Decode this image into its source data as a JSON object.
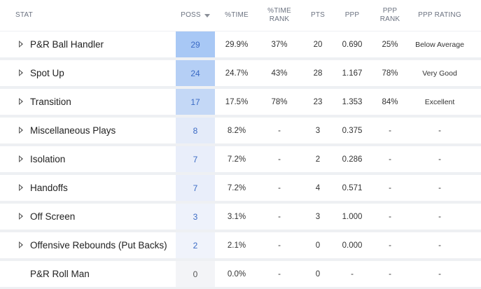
{
  "headers": {
    "stat": "STAT",
    "poss": "POSS",
    "pct_time": "%TIME",
    "pct_time_rank": "%TIME\nRANK",
    "pts": "PTS",
    "ppp": "PPP",
    "ppp_rank": "PPP\nRANK",
    "ppp_rating": "PPP RATING"
  },
  "colors": {
    "poss_shades": [
      "#a8c8f5",
      "#b5cff5",
      "#c4d8f6",
      "#e4ebf9",
      "#e9eefa",
      "#e9eefa",
      "#eef2fb",
      "#f0f3fb",
      "#f3f4f7"
    ],
    "link": "#2f6fd0"
  },
  "rows": [
    {
      "stat": "P&R Ball Handler",
      "expandable": true,
      "poss": "29",
      "pct_time": "29.9%",
      "pct_time_rank": "37%",
      "pts": "20",
      "ppp": "0.690",
      "ppp_rank": "25%",
      "ppp_rating": "Below Average"
    },
    {
      "stat": "Spot Up",
      "expandable": true,
      "poss": "24",
      "pct_time": "24.7%",
      "pct_time_rank": "43%",
      "pts": "28",
      "ppp": "1.167",
      "ppp_rank": "78%",
      "ppp_rating": "Very Good"
    },
    {
      "stat": "Transition",
      "expandable": true,
      "poss": "17",
      "pct_time": "17.5%",
      "pct_time_rank": "78%",
      "pts": "23",
      "ppp": "1.353",
      "ppp_rank": "84%",
      "ppp_rating": "Excellent"
    },
    {
      "stat": "Miscellaneous Plays",
      "expandable": true,
      "poss": "8",
      "pct_time": "8.2%",
      "pct_time_rank": "-",
      "pts": "3",
      "ppp": "0.375",
      "ppp_rank": "-",
      "ppp_rating": "-"
    },
    {
      "stat": "Isolation",
      "expandable": true,
      "poss": "7",
      "pct_time": "7.2%",
      "pct_time_rank": "-",
      "pts": "2",
      "ppp": "0.286",
      "ppp_rank": "-",
      "ppp_rating": "-"
    },
    {
      "stat": "Handoffs",
      "expandable": true,
      "poss": "7",
      "pct_time": "7.2%",
      "pct_time_rank": "-",
      "pts": "4",
      "ppp": "0.571",
      "ppp_rank": "-",
      "ppp_rating": "-"
    },
    {
      "stat": "Off Screen",
      "expandable": true,
      "poss": "3",
      "pct_time": "3.1%",
      "pct_time_rank": "-",
      "pts": "3",
      "ppp": "1.000",
      "ppp_rank": "-",
      "ppp_rating": "-"
    },
    {
      "stat": "Offensive Rebounds (Put Backs)",
      "expandable": true,
      "poss": "2",
      "pct_time": "2.1%",
      "pct_time_rank": "-",
      "pts": "0",
      "ppp": "0.000",
      "ppp_rank": "-",
      "ppp_rating": "-"
    },
    {
      "stat": "P&R Roll Man",
      "expandable": false,
      "poss": "0",
      "pct_time": "0.0%",
      "pct_time_rank": "-",
      "pts": "0",
      "ppp": "-",
      "ppp_rank": "-",
      "ppp_rating": "-"
    }
  ]
}
